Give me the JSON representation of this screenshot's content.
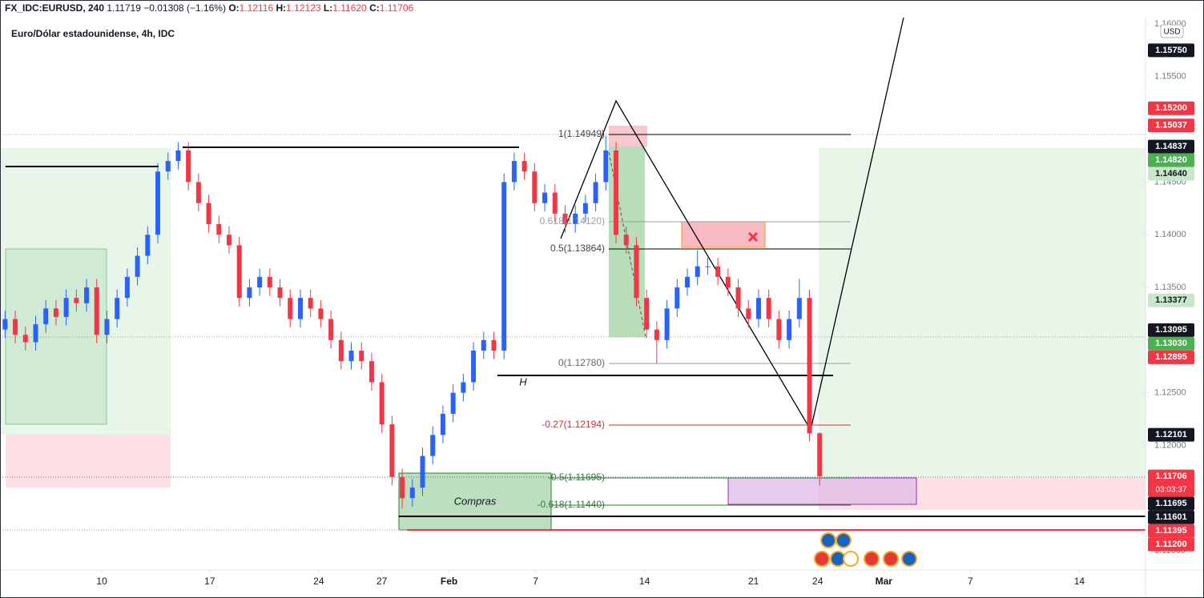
{
  "chart_data": {
    "type": "candlestick",
    "header": {
      "symbol": "FX_IDC:EURUSD, 240",
      "last": "1.11719",
      "change": "−0.01308 (−1.16%)",
      "o_label": "O:",
      "o": "1.12116",
      "h_label": "H:",
      "h": "1.12123",
      "l_label": "L:",
      "l": "1.11620",
      "c_label": "C:",
      "c": "1.11706"
    },
    "title": "Euro/Dólar estadounidense, 4h, IDC",
    "currency": "USD",
    "up_color": "#2962ff",
    "down_color": "#f23645",
    "x": [
      0,
      1,
      2,
      3,
      4,
      5,
      6,
      7,
      8,
      9,
      10,
      11,
      12,
      13,
      14,
      15,
      16,
      17,
      18,
      19,
      20,
      21,
      22,
      23,
      24,
      25,
      26,
      27,
      28,
      29,
      30,
      31,
      32,
      33,
      34,
      35,
      36,
      37,
      38,
      39,
      40,
      41,
      42,
      43,
      44,
      45,
      46,
      47,
      48,
      49,
      50,
      51,
      52,
      53,
      54,
      55,
      56,
      57,
      58,
      59,
      60,
      61,
      62,
      63,
      64,
      65,
      66,
      67,
      68,
      69,
      70,
      71,
      72,
      73,
      74,
      75,
      76,
      77,
      78,
      79,
      80
    ],
    "open": [
      1.131,
      1.132,
      1.1305,
      1.1298,
      1.1315,
      1.133,
      1.1322,
      1.134,
      1.1335,
      1.135,
      1.1305,
      1.132,
      1.134,
      1.136,
      1.138,
      1.14,
      1.146,
      1.147,
      1.148,
      1.145,
      1.143,
      1.141,
      1.14,
      1.139,
      1.134,
      1.135,
      1.136,
      1.135,
      1.134,
      1.132,
      1.134,
      1.133,
      1.132,
      1.13,
      1.128,
      1.129,
      1.128,
      1.126,
      1.122,
      1.117,
      1.115,
      1.116,
      1.119,
      1.121,
      1.123,
      1.125,
      1.126,
      1.129,
      1.13,
      1.129,
      1.145,
      1.147,
      1.146,
      1.143,
      1.144,
      1.142,
      1.141,
      1.142,
      1.143,
      1.145,
      1.148,
      1.14,
      1.139,
      1.134,
      1.131,
      1.13,
      1.133,
      1.135,
      1.136,
      1.137,
      1.137,
      1.136,
      1.135,
      1.133,
      1.132,
      1.134,
      1.132,
      1.13,
      1.132,
      1.134,
      1.12116
    ],
    "high": [
      1.1328,
      1.1328,
      1.1313,
      1.1323,
      1.1338,
      1.1338,
      1.1348,
      1.1348,
      1.1358,
      1.1358,
      1.1328,
      1.1348,
      1.1368,
      1.1388,
      1.1408,
      1.1468,
      1.1478,
      1.1488,
      1.1488,
      1.1458,
      1.1438,
      1.1418,
      1.1408,
      1.1398,
      1.1358,
      1.1368,
      1.1368,
      1.1358,
      1.1348,
      1.1348,
      1.1348,
      1.1338,
      1.1328,
      1.1308,
      1.1298,
      1.1298,
      1.1288,
      1.1268,
      1.1228,
      1.1178,
      1.1168,
      1.1198,
      1.1218,
      1.1238,
      1.1258,
      1.1268,
      1.1298,
      1.1308,
      1.1308,
      1.1458,
      1.1478,
      1.1478,
      1.1468,
      1.1448,
      1.1448,
      1.1428,
      1.1428,
      1.1438,
      1.1458,
      1.1494,
      1.1488,
      1.1408,
      1.1398,
      1.1348,
      1.1318,
      1.1338,
      1.1358,
      1.1368,
      1.1385,
      1.1378,
      1.1378,
      1.1368,
      1.1358,
      1.1338,
      1.1348,
      1.1348,
      1.1328,
      1.1328,
      1.1358,
      1.1348,
      1.12123
    ],
    "low": [
      1.1302,
      1.1297,
      1.129,
      1.129,
      1.1307,
      1.1314,
      1.1314,
      1.1327,
      1.1327,
      1.1297,
      1.1297,
      1.1312,
      1.1332,
      1.1352,
      1.1372,
      1.1392,
      1.1452,
      1.1462,
      1.1442,
      1.1422,
      1.1402,
      1.1392,
      1.1382,
      1.1332,
      1.1332,
      1.1342,
      1.1342,
      1.1332,
      1.1312,
      1.1312,
      1.1322,
      1.1312,
      1.1292,
      1.1272,
      1.1272,
      1.1272,
      1.1252,
      1.1212,
      1.1162,
      1.114,
      1.1142,
      1.1152,
      1.1182,
      1.1202,
      1.1222,
      1.1242,
      1.1252,
      1.1282,
      1.1282,
      1.1282,
      1.1442,
      1.1452,
      1.1422,
      1.1422,
      1.1412,
      1.1402,
      1.1402,
      1.1412,
      1.1422,
      1.1442,
      1.1392,
      1.1382,
      1.1332,
      1.1302,
      1.1278,
      1.1292,
      1.1322,
      1.1342,
      1.1352,
      1.1362,
      1.1352,
      1.1342,
      1.1322,
      1.1312,
      1.1312,
      1.1312,
      1.1292,
      1.1292,
      1.1312,
      1.1204,
      1.1162
    ],
    "close": [
      1.132,
      1.1305,
      1.1298,
      1.1315,
      1.133,
      1.1322,
      1.134,
      1.1335,
      1.135,
      1.1305,
      1.132,
      1.134,
      1.136,
      1.138,
      1.14,
      1.146,
      1.147,
      1.148,
      1.145,
      1.143,
      1.141,
      1.14,
      1.139,
      1.134,
      1.135,
      1.136,
      1.135,
      1.134,
      1.132,
      1.134,
      1.133,
      1.132,
      1.13,
      1.128,
      1.129,
      1.128,
      1.126,
      1.122,
      1.117,
      1.115,
      1.116,
      1.119,
      1.121,
      1.123,
      1.125,
      1.126,
      1.129,
      1.13,
      1.129,
      1.145,
      1.147,
      1.146,
      1.143,
      1.144,
      1.142,
      1.141,
      1.142,
      1.143,
      1.145,
      1.148,
      1.14,
      1.139,
      1.134,
      1.131,
      1.13,
      1.133,
      1.135,
      1.136,
      1.137,
      1.137,
      1.136,
      1.135,
      1.133,
      1.132,
      1.134,
      1.132,
      1.13,
      1.132,
      1.134,
      1.12116,
      1.11706
    ],
    "xlim": [
      -0.5,
      112
    ],
    "xticks": [
      {
        "value": 9.5,
        "label": "10"
      },
      {
        "value": 20.1,
        "label": "17"
      },
      {
        "value": 30.8,
        "label": "24"
      },
      {
        "value": 37,
        "label": "27"
      },
      {
        "value": 43.6,
        "label": "Feb"
      },
      {
        "value": 52.1,
        "label": "7"
      },
      {
        "value": 62.8,
        "label": "14"
      },
      {
        "value": 73.5,
        "label": "21"
      },
      {
        "value": 79.8,
        "label": "24"
      },
      {
        "value": 86.3,
        "label": "Mar"
      },
      {
        "value": 94.8,
        "label": "7"
      },
      {
        "value": 105.5,
        "label": "14"
      }
    ],
    "ylim": [
      1.10818,
      1.16228
    ],
    "yticks": [
      {
        "value": 1.16,
        "label": "1.16000"
      },
      {
        "value": 1.155,
        "label": "1.15500"
      },
      {
        "value": 1.145,
        "label": "1.14500"
      },
      {
        "value": 1.14,
        "label": "1.14000"
      },
      {
        "value": 1.135,
        "label": "1.13500"
      },
      {
        "value": 1.125,
        "label": "1.12500"
      },
      {
        "value": 1.12,
        "label": "1.12000"
      },
      {
        "value": 1.11,
        "label": "1.11000"
      }
    ],
    "grid": false,
    "price_labels": [
      {
        "value": 1.1575,
        "label": "1.15750",
        "color": "#131722"
      },
      {
        "value": 1.152,
        "label": "1.15200",
        "color": "#f23645"
      },
      {
        "value": 1.15037,
        "label": "1.15037",
        "color": "#f23645"
      },
      {
        "value": 1.14837,
        "label": "1.14837",
        "color": "#131722"
      },
      {
        "value": 1.1482,
        "label": "1.14820",
        "color": "#4caf50"
      },
      {
        "value": 1.1464,
        "label": "1.14640",
        "color": "#c8e6c9"
      },
      {
        "value": 1.13377,
        "label": "1.13377",
        "color": "#c8e6c9"
      },
      {
        "value": 1.13095,
        "label": "1.13095",
        "color": "#131722"
      },
      {
        "value": 1.1303,
        "label": "1.13030",
        "color": "#4caf50"
      },
      {
        "value": 1.12895,
        "label": "1.12895",
        "color": "#f23645"
      },
      {
        "value": 1.12101,
        "label": "1.12101",
        "color": "#131722"
      },
      {
        "value": 1.11706,
        "label": "1.11706",
        "color": "#f23645"
      },
      {
        "value": 1.11695,
        "label": "1.11695",
        "color": "#131722"
      },
      {
        "value": 1.11601,
        "label": "1.11601",
        "color": "#131722"
      },
      {
        "value": 1.11395,
        "label": "1.11395",
        "color": "#f23645"
      },
      {
        "value": 1.112,
        "label": "1.11200",
        "color": "#f23645"
      }
    ],
    "countdown": "03:03:37",
    "fib_labels": [
      {
        "text": "1(1.14949)",
        "color": "#444"
      },
      {
        "text": "0.618(1.14120)",
        "color": "#9e9e9e"
      },
      {
        "text": "0.5(1.13864)",
        "color": "#444"
      },
      {
        "text": "0(1.12780)",
        "color": "#666"
      },
      {
        "text": "-0.27(1.12194)",
        "color": "#d32f2f"
      },
      {
        "text": "-0.5(1.11695)",
        "color": "#2e7d32"
      },
      {
        "text": "-0.618(1.11440)",
        "color": "#2e7d32"
      }
    ],
    "annotations": [
      "Compras",
      "H"
    ]
  }
}
